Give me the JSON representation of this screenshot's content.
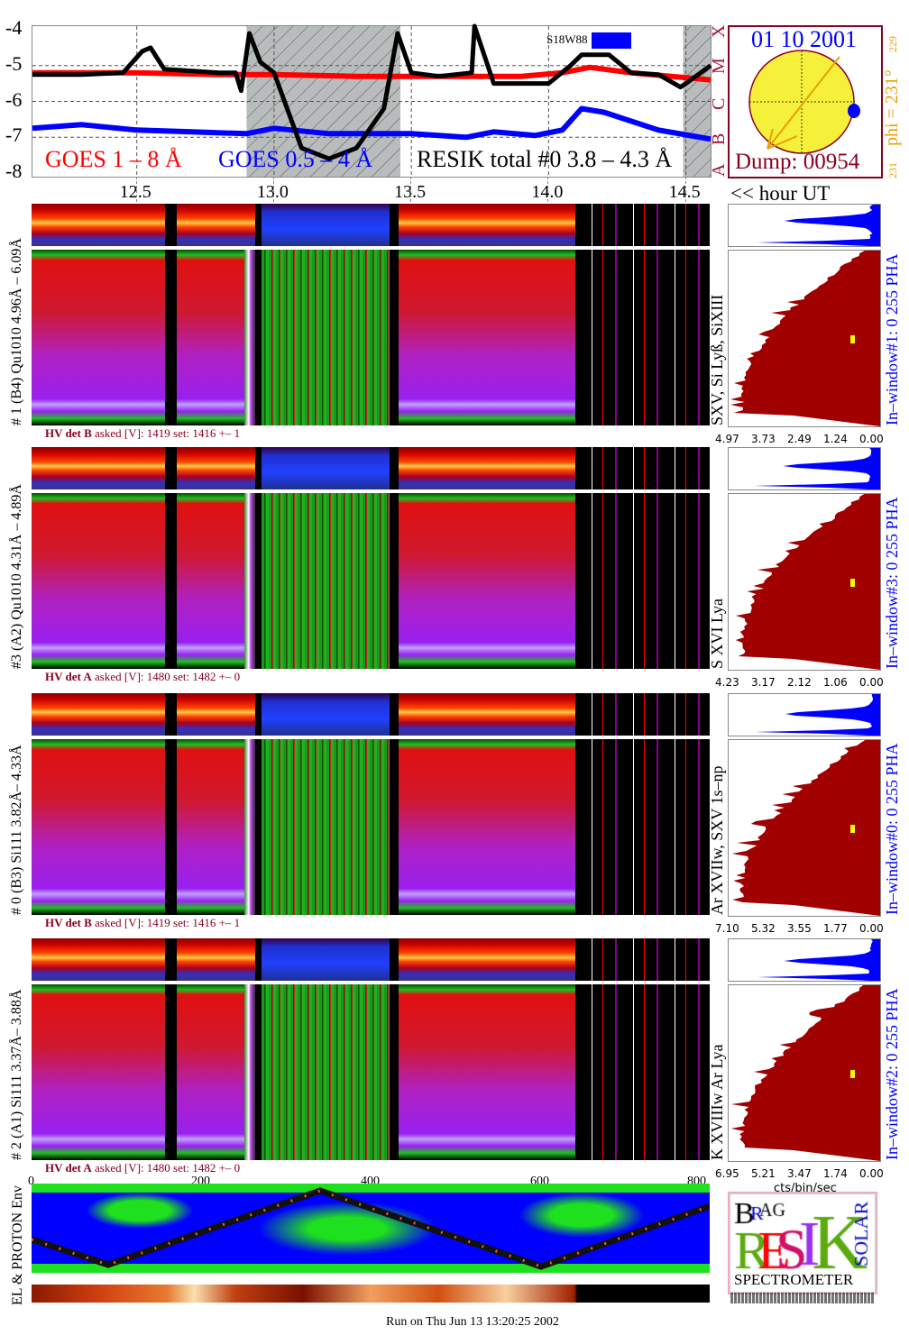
{
  "chart_data": {
    "type": "line",
    "x_label": "<< hour UT",
    "x_ticks": [
      "12.5",
      "13.0",
      "13.5",
      "14.0",
      "14.5"
    ],
    "xlim": [
      12.12,
      14.59
    ],
    "y_ticks": [
      "-4",
      "-5",
      "-6",
      "-7",
      "-8"
    ],
    "ylim": [
      -8.1,
      -3.9
    ],
    "grid": true,
    "right_axis_labels": [
      "A",
      "B",
      "C",
      "M",
      "X"
    ],
    "shaded_intervals": [
      [
        12.9,
        13.46
      ],
      [
        14.49,
        14.59
      ]
    ],
    "series": [
      {
        "name": "GOES 1 – 8 Å",
        "color": "#ff0000",
        "x": [
          12.12,
          12.5,
          12.8,
          13.0,
          13.3,
          13.6,
          13.9,
          14.05,
          14.15,
          14.3,
          14.59
        ],
        "y": [
          -5.2,
          -5.2,
          -5.25,
          -5.25,
          -5.3,
          -5.3,
          -5.3,
          -5.2,
          -5.05,
          -5.2,
          -5.4
        ]
      },
      {
        "name": "GOES 0.5 – 4 Å",
        "color": "#0000ff",
        "x": [
          12.12,
          12.3,
          12.5,
          12.7,
          12.9,
          13.0,
          13.2,
          13.5,
          13.7,
          13.8,
          13.95,
          14.05,
          14.12,
          14.2,
          14.4,
          14.59
        ],
        "y": [
          -6.75,
          -6.65,
          -6.8,
          -6.85,
          -6.9,
          -6.75,
          -6.9,
          -6.9,
          -7.0,
          -6.85,
          -6.95,
          -6.8,
          -6.2,
          -6.3,
          -6.8,
          -7.05
        ]
      },
      {
        "name": "RESIK total #0  3.8 – 4.3 Å",
        "color": "#000000",
        "x": [
          12.12,
          12.3,
          12.45,
          12.52,
          12.55,
          12.6,
          12.8,
          12.86,
          12.88,
          12.91,
          12.95,
          13.0,
          13.1,
          13.2,
          13.3,
          13.4,
          13.45,
          13.5,
          13.6,
          13.72,
          13.73,
          13.8,
          14.0,
          14.08,
          14.12,
          14.22,
          14.3,
          14.4,
          14.48,
          14.5,
          14.59
        ],
        "y": [
          -5.25,
          -5.25,
          -5.2,
          -4.6,
          -4.5,
          -5.1,
          -5.2,
          -5.2,
          -5.7,
          -4.1,
          -4.9,
          -5.2,
          -7.3,
          -7.6,
          -7.3,
          -6.2,
          -4.1,
          -5.2,
          -5.3,
          -5.2,
          -3.9,
          -5.5,
          -5.5,
          -5.0,
          -4.7,
          -4.7,
          -5.2,
          -5.25,
          -5.6,
          -5.5,
          -5.0
        ]
      }
    ],
    "annotation": "S18W88",
    "x2_ticks": [
      "0",
      "200",
      "400",
      "600",
      "800"
    ]
  },
  "sun": {
    "date": "01 10 2001",
    "phi": "phi = 231°",
    "phi_top": "229",
    "phi_bottom": "231",
    "dump": "Dump: 00954"
  },
  "panels": [
    {
      "label": "# 1 (B4) Qu1010 4.96Å – 6.09Å",
      "lines": "SXV, Si Lyß, SiXIII",
      "hv": {
        "a": "HV det ",
        "d": "B",
        "b": " asked [V]:  1419 set:  1416  +–    1"
      },
      "ticks": [
        "4.97",
        "3.73",
        "2.49",
        "1.24",
        "0.00"
      ],
      "window": "In–window#1:   0 255  PHA"
    },
    {
      "label": "#3 (A2) Qu1010  4.31Å – 4.89Å",
      "lines": "S XVI Lya",
      "hv": {
        "a": "HV det ",
        "d": "A",
        "b": " asked [V]:  1480 set:  1482  +–    0"
      },
      "ticks": [
        "4.23",
        "3.17",
        "2.12",
        "1.06",
        "0.00"
      ],
      "window": "In–window#3:   0 255  PHA"
    },
    {
      "label": "# 0 (B3) Si111  3.82Å– 4.33Å",
      "lines": "Ar XVIIw,  SXV 1s–np",
      "hv": {
        "a": "HV det ",
        "d": "B",
        "b": " asked [V]:  1419 set:  1416  +–    1"
      },
      "ticks": [
        "7.10",
        "5.32",
        "3.55",
        "1.77",
        "0.00"
      ],
      "window": "In–window#0:   0 255  PHA"
    },
    {
      "label": "# 2 (A1) Si111  3.37Å– 3.88Å",
      "lines": "K XVIIIw  Ar Lya",
      "hv": {
        "a": "HV det ",
        "d": "A",
        "b": " asked [V]:  1480 set:  1482  +–    0"
      },
      "ticks": [
        "6.95",
        "5.21",
        "3.47",
        "1.74",
        "0.00"
      ],
      "window": "In–window#2:   0 255  PHA"
    }
  ],
  "pha_unit": "cts/bin/sec",
  "env_label": "EL & PROTON Env",
  "logo": {
    "text": "BRAGG RESIK SOLAR SPECTROMETER"
  },
  "logo_sub": "SPECTROMETER",
  "footer": "Run on Thu Jun 13 13:20:25 2002",
  "colors": {
    "goes_long": "#ff0000",
    "goes_short": "#0000ff",
    "resik": "#000000",
    "frame": "#8b0020",
    "pha_hist": "#a00000",
    "pha_strip": "#0000ff",
    "phi": "#e8a000"
  }
}
